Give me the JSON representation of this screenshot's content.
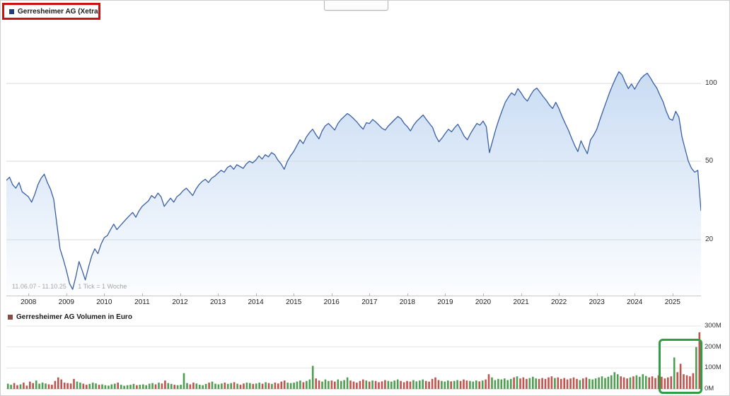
{
  "colors": {
    "price_line": "#3a5fa5",
    "price_fill_top": "#c3d8f2",
    "price_fill_bottom": "#fbfdff",
    "price_legend_square": "#1e3f7f",
    "volume_legend_square": "#8c4a42",
    "volume_up": "#4d9e50",
    "volume_down": "#bf544e",
    "annotation_red": "#cc1111",
    "annotation_green": "#2f9e44",
    "grid": "#d9d9d9",
    "axis_line": "#c8c8c8",
    "axis_text": "#333333"
  },
  "chart_data": [
    {
      "type": "area",
      "title": "Gerresheimer AG (Xetra)",
      "period_label": "11.06.07 - 11.10.25",
      "tick_label": "1 Tick = 1 Woche",
      "y_scale": "log",
      "unit": "EUR",
      "y_ticks": [
        100,
        50,
        20
      ],
      "x_tick_labels": [
        "2008",
        "2009",
        "2010",
        "2011",
        "2012",
        "2013",
        "2014",
        "2015",
        "2016",
        "2017",
        "2018",
        "2019",
        "2020",
        "2021",
        "2022",
        "2023",
        "2024",
        "2025"
      ],
      "x_start_month": "2007-06",
      "x_end_month": "2025-10",
      "values_monthly_eur": [
        40,
        41.5,
        38,
        36.5,
        39,
        35,
        34,
        33,
        31,
        34,
        38,
        41,
        43,
        39,
        36,
        32,
        24,
        18,
        16,
        14,
        12,
        11.2,
        13,
        15.5,
        14,
        12.5,
        14.5,
        16.5,
        18,
        17,
        19,
        20.5,
        21,
        22.5,
        24,
        22.5,
        23.5,
        24.5,
        25.5,
        26.5,
        27.5,
        26,
        28,
        29.5,
        30.5,
        31.5,
        33.5,
        32.5,
        34.5,
        33,
        29.5,
        31,
        32.5,
        31,
        33,
        34,
        35.5,
        36.5,
        35,
        33.5,
        36,
        38,
        39.5,
        40.5,
        39,
        41,
        42,
        43.5,
        45,
        44,
        46.5,
        47.5,
        45.5,
        48,
        47,
        46,
        48.5,
        50,
        49,
        50.5,
        52.5,
        51,
        53,
        52,
        54,
        53,
        50.5,
        48.5,
        45.5,
        50,
        52.5,
        54.5,
        57.5,
        60.5,
        58.5,
        62,
        64.5,
        66.5,
        63.5,
        61,
        65.5,
        68.5,
        70,
        68,
        66,
        70,
        72.5,
        74.5,
        76.5,
        75,
        73,
        71,
        68.5,
        66.5,
        70.5,
        70,
        72.5,
        71,
        69,
        67,
        66,
        68.5,
        70.5,
        72.5,
        74.5,
        73,
        70,
        68,
        65.5,
        69,
        71.5,
        73.5,
        75.5,
        72.5,
        70,
        67.5,
        62.5,
        59.5,
        61.5,
        64,
        66.5,
        65,
        67.5,
        69.5,
        66,
        62.5,
        60.5,
        64,
        67,
        70,
        69,
        71.5,
        68,
        54,
        60,
        66.5,
        72.5,
        78.5,
        84.5,
        88.5,
        92,
        90,
        95.5,
        92,
        88,
        85.5,
        90,
        94,
        96,
        92.5,
        89,
        86,
        82.5,
        80,
        84.5,
        80,
        74.5,
        70,
        66,
        61.5,
        57.5,
        54.5,
        60,
        56.5,
        53.5,
        60.5,
        63,
        66.5,
        72.5,
        78.5,
        85,
        92,
        98.5,
        105,
        111,
        108,
        101,
        95.5,
        99.5,
        95,
        100,
        104.5,
        107.5,
        109.5,
        105,
        100,
        96,
        90,
        85,
        78,
        73,
        72,
        78,
        74,
        62,
        55.5,
        50,
        46,
        44,
        45,
        28
      ]
    },
    {
      "type": "bar",
      "title": "Gerresheimer AG Volumen in Euro",
      "unit": "million EUR",
      "y_ticks": [
        {
          "label": "300M",
          "value": 300
        },
        {
          "label": "200M",
          "value": 200
        },
        {
          "label": "100M",
          "value": 100
        },
        {
          "label": "0M",
          "value": 0
        }
      ],
      "values_monthly_millions": [
        25,
        20,
        28,
        18,
        22,
        30,
        16,
        35,
        28,
        40,
        25,
        30,
        26,
        22,
        20,
        38,
        55,
        45,
        30,
        28,
        26,
        48,
        35,
        30,
        25,
        20,
        24,
        30,
        26,
        20,
        22,
        18,
        16,
        22,
        25,
        30,
        20,
        15,
        18,
        20,
        24,
        18,
        20,
        22,
        18,
        25,
        28,
        22,
        30,
        26,
        40,
        28,
        24,
        20,
        18,
        20,
        75,
        28,
        22,
        30,
        26,
        20,
        18,
        24,
        30,
        35,
        25,
        22,
        26,
        30,
        24,
        28,
        32,
        25,
        20,
        26,
        30,
        28,
        24,
        26,
        30,
        25,
        32,
        28,
        24,
        30,
        26,
        35,
        40,
        30,
        28,
        30,
        35,
        40,
        32,
        38,
        45,
        110,
        50,
        40,
        35,
        45,
        38,
        40,
        35,
        45,
        38,
        42,
        55,
        40,
        35,
        30,
        38,
        45,
        40,
        35,
        40,
        38,
        32,
        36,
        42,
        38,
        35,
        40,
        45,
        38,
        32,
        38,
        35,
        42,
        36,
        40,
        45,
        38,
        35,
        48,
        55,
        42,
        38,
        35,
        40,
        36,
        38,
        42,
        38,
        45,
        40,
        38,
        35,
        40,
        36,
        40,
        45,
        70,
        55,
        42,
        48,
        45,
        50,
        42,
        48,
        55,
        60,
        50,
        55,
        48,
        52,
        58,
        50,
        48,
        52,
        48,
        55,
        60,
        52,
        55,
        48,
        52,
        45,
        50,
        55,
        48,
        42,
        50,
        55,
        48,
        45,
        50,
        55,
        60,
        52,
        58,
        65,
        80,
        70,
        60,
        55,
        50,
        55,
        60,
        65,
        58,
        70,
        62,
        55,
        60,
        52,
        65,
        58,
        50,
        55,
        60,
        150,
        80,
        120,
        70,
        65,
        60,
        75,
        200,
        270
      ]
    }
  ]
}
